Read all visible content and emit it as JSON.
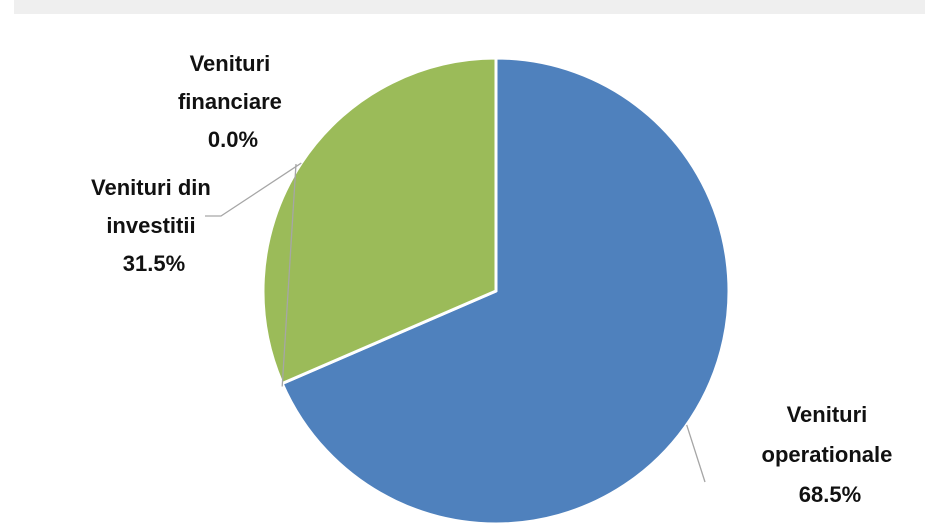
{
  "chart_data": {
    "type": "pie",
    "title": "",
    "slices": [
      {
        "label": [
          "Venituri",
          "operationale"
        ],
        "name": "Venituri operationale",
        "value": 68.5,
        "percent_label": "68.5%",
        "color": "#4f81bd"
      },
      {
        "label": [
          "Venituri",
          "financiare"
        ],
        "name": "Venituri financiare",
        "value": 0.0,
        "percent_label": "0.0%",
        "color": "#c0504d"
      },
      {
        "label": [
          "Venituri din",
          "investitii"
        ],
        "name": "Venituri din investitii",
        "value": 31.5,
        "percent_label": "31.5%",
        "color": "#9bbb59"
      }
    ],
    "start_angle_deg": 0,
    "direction": "clockwise",
    "legend": "none",
    "data_labels": "outside with leader lines",
    "slice_border_color": "#ffffff"
  }
}
